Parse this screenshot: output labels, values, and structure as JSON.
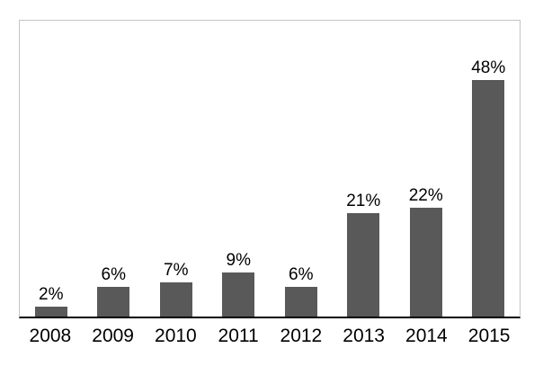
{
  "chart_data": {
    "type": "bar",
    "title": "",
    "categories": [
      "2008",
      "2009",
      "2010",
      "2011",
      "2012",
      "2013",
      "2014",
      "2015"
    ],
    "values": [
      2,
      6,
      7,
      9,
      6,
      21,
      22,
      48
    ],
    "data_labels": [
      "2%",
      "6%",
      "7%",
      "9%",
      "6%",
      "21%",
      "22%",
      "48%"
    ],
    "xlabel": "",
    "ylabel": "",
    "ylim": [
      0,
      60
    ],
    "grid": false,
    "legend": "none"
  },
  "colors": {
    "bar": "#595959",
    "plot_border": "#c4c4c4",
    "axis_line": "#000000",
    "text": "#000000",
    "background": "#ffffff"
  }
}
